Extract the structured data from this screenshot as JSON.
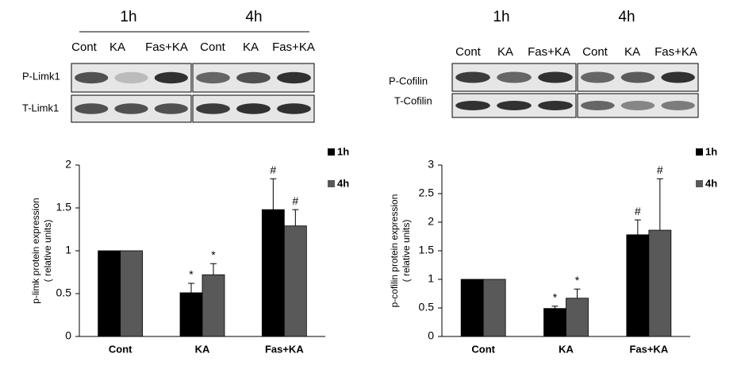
{
  "blots": [
    {
      "time_labels": [
        "1h",
        "4h"
      ],
      "lanes": [
        "Cont",
        "KA",
        "Fas+KA",
        "Cont",
        "KA",
        "Fas+KA"
      ],
      "rows": [
        "P-Limk1",
        "T-Limk1"
      ]
    },
    {
      "time_labels": [
        "1h",
        "4h"
      ],
      "lanes": [
        "Cont",
        "KA",
        "Fas+KA",
        "Cont",
        "KA",
        "Fas+KA"
      ],
      "rows": [
        "P-Cofilin",
        "T-Cofilin"
      ]
    }
  ],
  "chart_data": [
    {
      "type": "bar",
      "y_label": [
        "p-limk  protein expression",
        "( relative units)"
      ],
      "categories": [
        "Cont",
        "KA",
        "Fas+KA"
      ],
      "series": [
        {
          "name": "1h",
          "color": "#000000",
          "values": [
            1,
            0.51,
            1.48
          ],
          "errors": [
            null,
            0.11,
            0.36
          ],
          "annotations": [
            null,
            "*",
            "#"
          ]
        },
        {
          "name": "4h",
          "color": "#595959",
          "values": [
            1,
            0.72,
            1.29
          ],
          "errors": [
            null,
            0.13,
            0.19
          ],
          "annotations": [
            null,
            "*",
            "#"
          ]
        }
      ],
      "ylim": [
        0,
        2
      ],
      "yticks": [
        0,
        0.5,
        1,
        1.5,
        2
      ],
      "legend": "upper right"
    },
    {
      "type": "bar",
      "y_label": [
        "p-cofilin protein expression",
        "( relative units)"
      ],
      "categories": [
        "Cont",
        "KA",
        "Fas+KA"
      ],
      "series": [
        {
          "name": "1h",
          "color": "#000000",
          "values": [
            1,
            0.49,
            1.78
          ],
          "errors": [
            null,
            0.04,
            0.26
          ],
          "annotations": [
            null,
            "*",
            "#"
          ]
        },
        {
          "name": "4h",
          "color": "#595959",
          "values": [
            1,
            0.67,
            1.86
          ],
          "errors": [
            null,
            0.16,
            0.9
          ],
          "annotations": [
            null,
            "*",
            "#"
          ]
        }
      ],
      "ylim": [
        0,
        3
      ],
      "yticks": [
        0,
        0.5,
        1,
        1.5,
        2,
        2.5,
        3
      ],
      "legend": "upper right"
    }
  ]
}
